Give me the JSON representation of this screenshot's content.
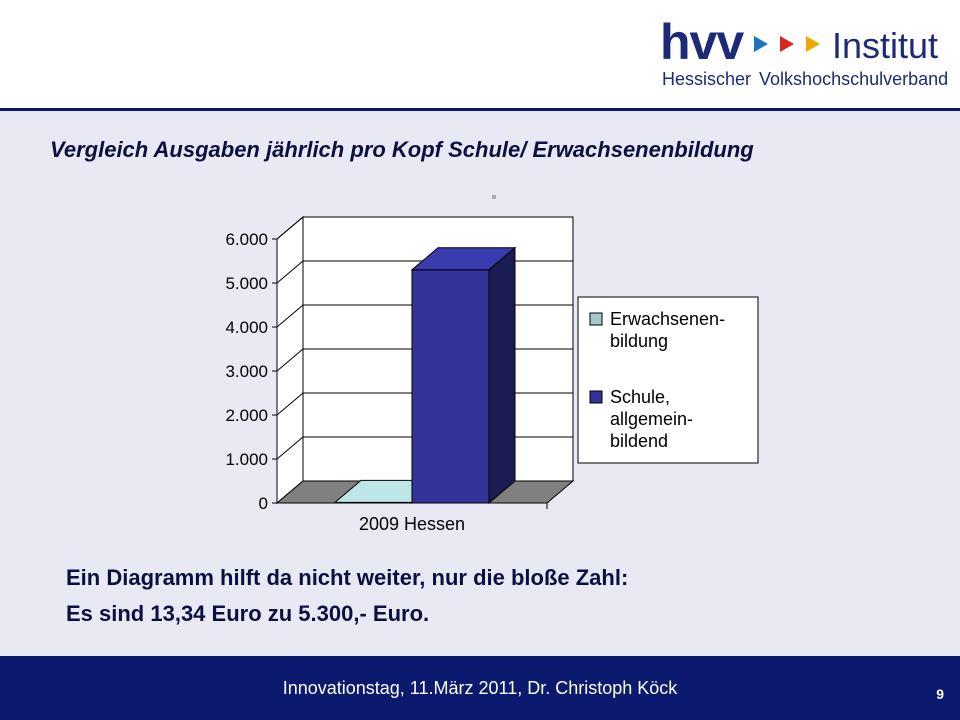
{
  "logo": {
    "name": "hvv",
    "suffix": "Institut",
    "sub1": "Hessischer",
    "sub2": "Volkshochschulverband",
    "arrow_colors": [
      "#1e73be",
      "#d7261e",
      "#f0a800"
    ]
  },
  "slide": {
    "title": "Vergleich Ausgaben jährlich pro Kopf Schule/ Erwachsenenbildung",
    "line1": "Ein Diagramm hilft da nicht weiter, nur die bloße Zahl:",
    "line2": "Es sind 13,34 Euro zu 5.300,- Euro."
  },
  "footer": {
    "text": "Innovationstag, 11.März 2011, Dr. Christoph Köck",
    "page": "9"
  },
  "chart_data": {
    "type": "bar",
    "categories": [
      "2009 Hessen"
    ],
    "series": [
      {
        "name": "Erwachsenen-bildung",
        "values": [
          13.34
        ],
        "color": "#a6c8c8"
      },
      {
        "name": "Schule, allgemein-bildend",
        "values": [
          5300
        ],
        "color": "#333399"
      }
    ],
    "yticks": [
      "0",
      "1.000",
      "2.000",
      "3.000",
      "4.000",
      "5.000",
      "6.000"
    ],
    "ylim": [
      0,
      6000
    ],
    "grid": true,
    "legend": "right"
  }
}
